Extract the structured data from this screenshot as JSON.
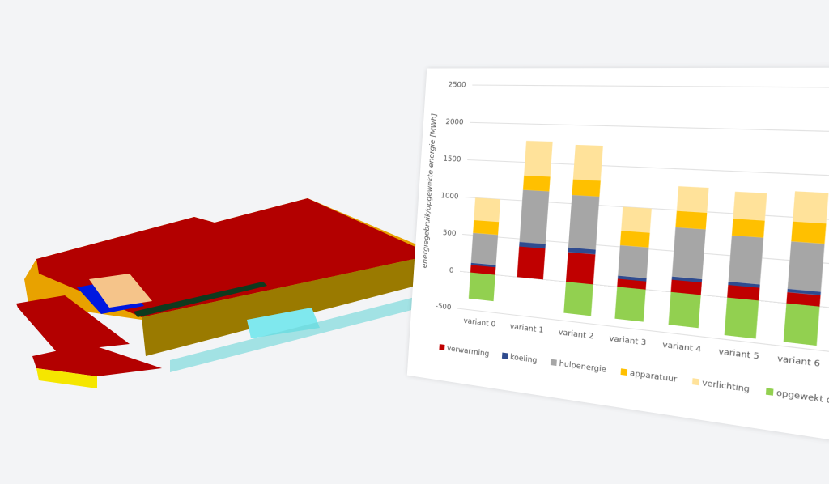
{
  "chart_data": {
    "type": "bar",
    "stacked": true,
    "grid": true,
    "legend": "bottom",
    "y_label": "energiegebruik/opgewekte energie [MWh]",
    "categories": [
      "variant 0",
      "variant 1",
      "variant 2",
      "variant 3",
      "variant 4",
      "variant 5",
      "variant 6"
    ],
    "series": [
      {
        "name": "verwarming",
        "color": "#c00000",
        "values": [
          100,
          400,
          380,
          100,
          150,
          150,
          130
        ]
      },
      {
        "name": "koeling",
        "color": "#2f4b8f",
        "values": [
          30,
          60,
          60,
          40,
          40,
          40,
          40
        ]
      },
      {
        "name": "hulpenergie",
        "color": "#a6a6a6",
        "values": [
          400,
          680,
          670,
          380,
          600,
          550,
          550
        ]
      },
      {
        "name": "apparatuur",
        "color": "#ffc000",
        "values": [
          170,
          190,
          200,
          180,
          200,
          200,
          230
        ]
      },
      {
        "name": "verlichting",
        "color": "#ffe29a",
        "values": [
          300,
          450,
          440,
          300,
          300,
          320,
          350
        ]
      },
      {
        "name": "opgewekt door PV",
        "color": "#92d050",
        "values": [
          -350,
          0,
          -400,
          -400,
          -400,
          -450,
          -450
        ]
      }
    ],
    "ylim": [
      -500,
      2500
    ],
    "yticks": [
      -500,
      0,
      500,
      1000,
      1500,
      2000,
      2500
    ]
  }
}
